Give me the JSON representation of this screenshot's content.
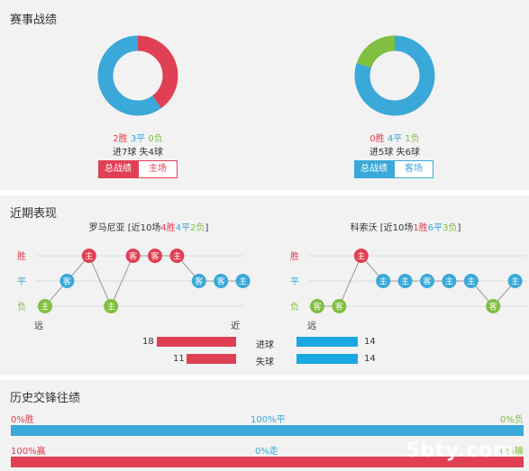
{
  "record": {
    "title": "赛事战绩",
    "left": {
      "win": "2胜",
      "draw": "3平",
      "loss": "0负",
      "goals": "进7球",
      "conceded": "失4球",
      "tab_all": "总战绩",
      "tab_venue": "主场",
      "win_n": 2,
      "draw_n": 3,
      "loss_n": 0
    },
    "right": {
      "win": "0胜",
      "draw": "4平",
      "loss": "1负",
      "goals": "进5球",
      "conceded": "失6球",
      "tab_all": "总战绩",
      "tab_venue": "客场",
      "win_n": 0,
      "draw_n": 4,
      "loss_n": 1
    },
    "colors": {
      "win": "#e04053",
      "draw": "#3aa8d8",
      "loss": "#80bf3f"
    }
  },
  "recent": {
    "title": "近期表现",
    "row_win": "胜",
    "row_draw": "平",
    "row_loss": "负",
    "far": "远",
    "near": "近",
    "left": {
      "team": "罗马尼亚",
      "prefix": " [近10场",
      "w": "4胜",
      "d": "4平",
      "l": "2负",
      "suffix": "]",
      "matches": [
        {
          "r": "L",
          "v": "主"
        },
        {
          "r": "D",
          "v": "客"
        },
        {
          "r": "W",
          "v": "主"
        },
        {
          "r": "L",
          "v": "主"
        },
        {
          "r": "W",
          "v": "客"
        },
        {
          "r": "W",
          "v": "客"
        },
        {
          "r": "W",
          "v": "主"
        },
        {
          "r": "D",
          "v": "客"
        },
        {
          "r": "D",
          "v": "客"
        },
        {
          "r": "D",
          "v": "主"
        }
      ]
    },
    "right": {
      "team": "科索沃",
      "prefix": " [近10场",
      "w": "1胜",
      "d": "6平",
      "l": "3负",
      "suffix": "]",
      "matches": [
        {
          "r": "L",
          "v": "客"
        },
        {
          "r": "L",
          "v": "客"
        },
        {
          "r": "W",
          "v": "主"
        },
        {
          "r": "D",
          "v": "主"
        },
        {
          "r": "D",
          "v": "主"
        },
        {
          "r": "D",
          "v": "客"
        },
        {
          "r": "D",
          "v": "主"
        },
        {
          "r": "D",
          "v": "主"
        },
        {
          "r": "L",
          "v": "客"
        },
        {
          "r": "D",
          "v": "主"
        }
      ]
    },
    "goals": {
      "label": "进球",
      "left": "18",
      "right": "14",
      "left_n": 18,
      "right_n": 14
    },
    "conceded": {
      "label": "失球",
      "left": "11",
      "right": "14",
      "left_n": 11,
      "right_n": 14
    }
  },
  "history": {
    "title": "历史交锋往绩",
    "row1": {
      "win": "0%胜",
      "draw": "100%平",
      "loss": "0%负",
      "draw_frac": 1.0
    },
    "row2": {
      "win": "100%赢",
      "draw": "0%走",
      "loss": "0%输",
      "win_frac": 1.0
    }
  },
  "watermark": "5bty.com"
}
